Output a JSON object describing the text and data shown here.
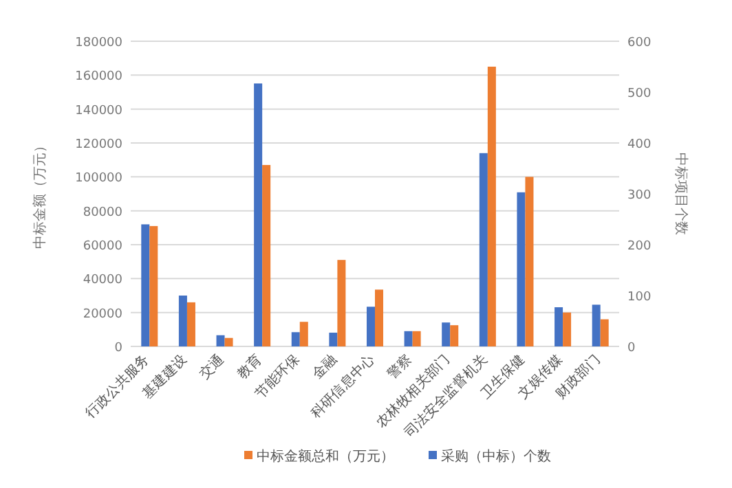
{
  "chart_data": {
    "type": "bar",
    "ylabel": "中标金额（万元）",
    "y2label": "中标项目个数",
    "categories": [
      "行政公共服务",
      "基建建设",
      "交通",
      "教育",
      "节能环保",
      "金融",
      "科研信息中心",
      "警察",
      "农林牧相关部门",
      "司法安全监督机关",
      "卫生保健",
      "文娱传媒",
      "财政部门"
    ],
    "series": [
      {
        "name": "采购（中标）个数",
        "color": "#4472c4",
        "axis": "y2",
        "values": [
          240,
          100,
          22,
          517,
          28,
          27,
          78,
          30,
          47,
          380,
          303,
          77,
          82
        ]
      },
      {
        "name": "中标金额总和（万元）",
        "color": "#ed7d31",
        "values": [
          71000,
          26000,
          5000,
          107000,
          14500,
          51000,
          33500,
          9000,
          12500,
          165000,
          100000,
          20000,
          16000
        ]
      }
    ],
    "ylim": [
      0,
      180000
    ],
    "yticks": [
      0,
      20000,
      40000,
      60000,
      80000,
      100000,
      120000,
      140000,
      160000,
      180000
    ],
    "y2lim": [
      0,
      600
    ],
    "y2ticks": [
      0,
      100,
      200,
      300,
      400,
      500,
      600
    ],
    "grid": "y",
    "legend": "bottom"
  }
}
